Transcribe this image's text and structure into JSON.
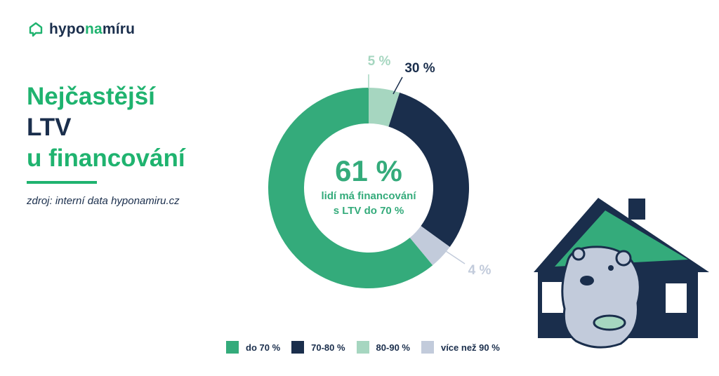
{
  "brand": {
    "name_part1": "hypo",
    "name_part2": "na",
    "name_part3": "míru",
    "accent": "#1fb36f",
    "dark": "#1a2e4c"
  },
  "headline": {
    "line1": "Nejčastější",
    "line2": "LTV",
    "line3": "u financování"
  },
  "source": "zdroj: interní data hyponamiru.cz",
  "center": {
    "big": "61 %",
    "line1": "lidí má financování",
    "line2": "s LTV do 70 %"
  },
  "chart_data": {
    "type": "pie",
    "donut": true,
    "categories": [
      "do 70 %",
      "70-80 %",
      "80-90 %",
      "více než 90 %"
    ],
    "values": [
      61,
      30,
      5,
      4
    ],
    "labels": [
      "",
      "30 %",
      "5 %",
      "4 %"
    ],
    "colors": [
      "#34ab7b",
      "#1a2e4c",
      "#a6d6c0",
      "#c2cbdb"
    ],
    "legend_position": "bottom"
  }
}
